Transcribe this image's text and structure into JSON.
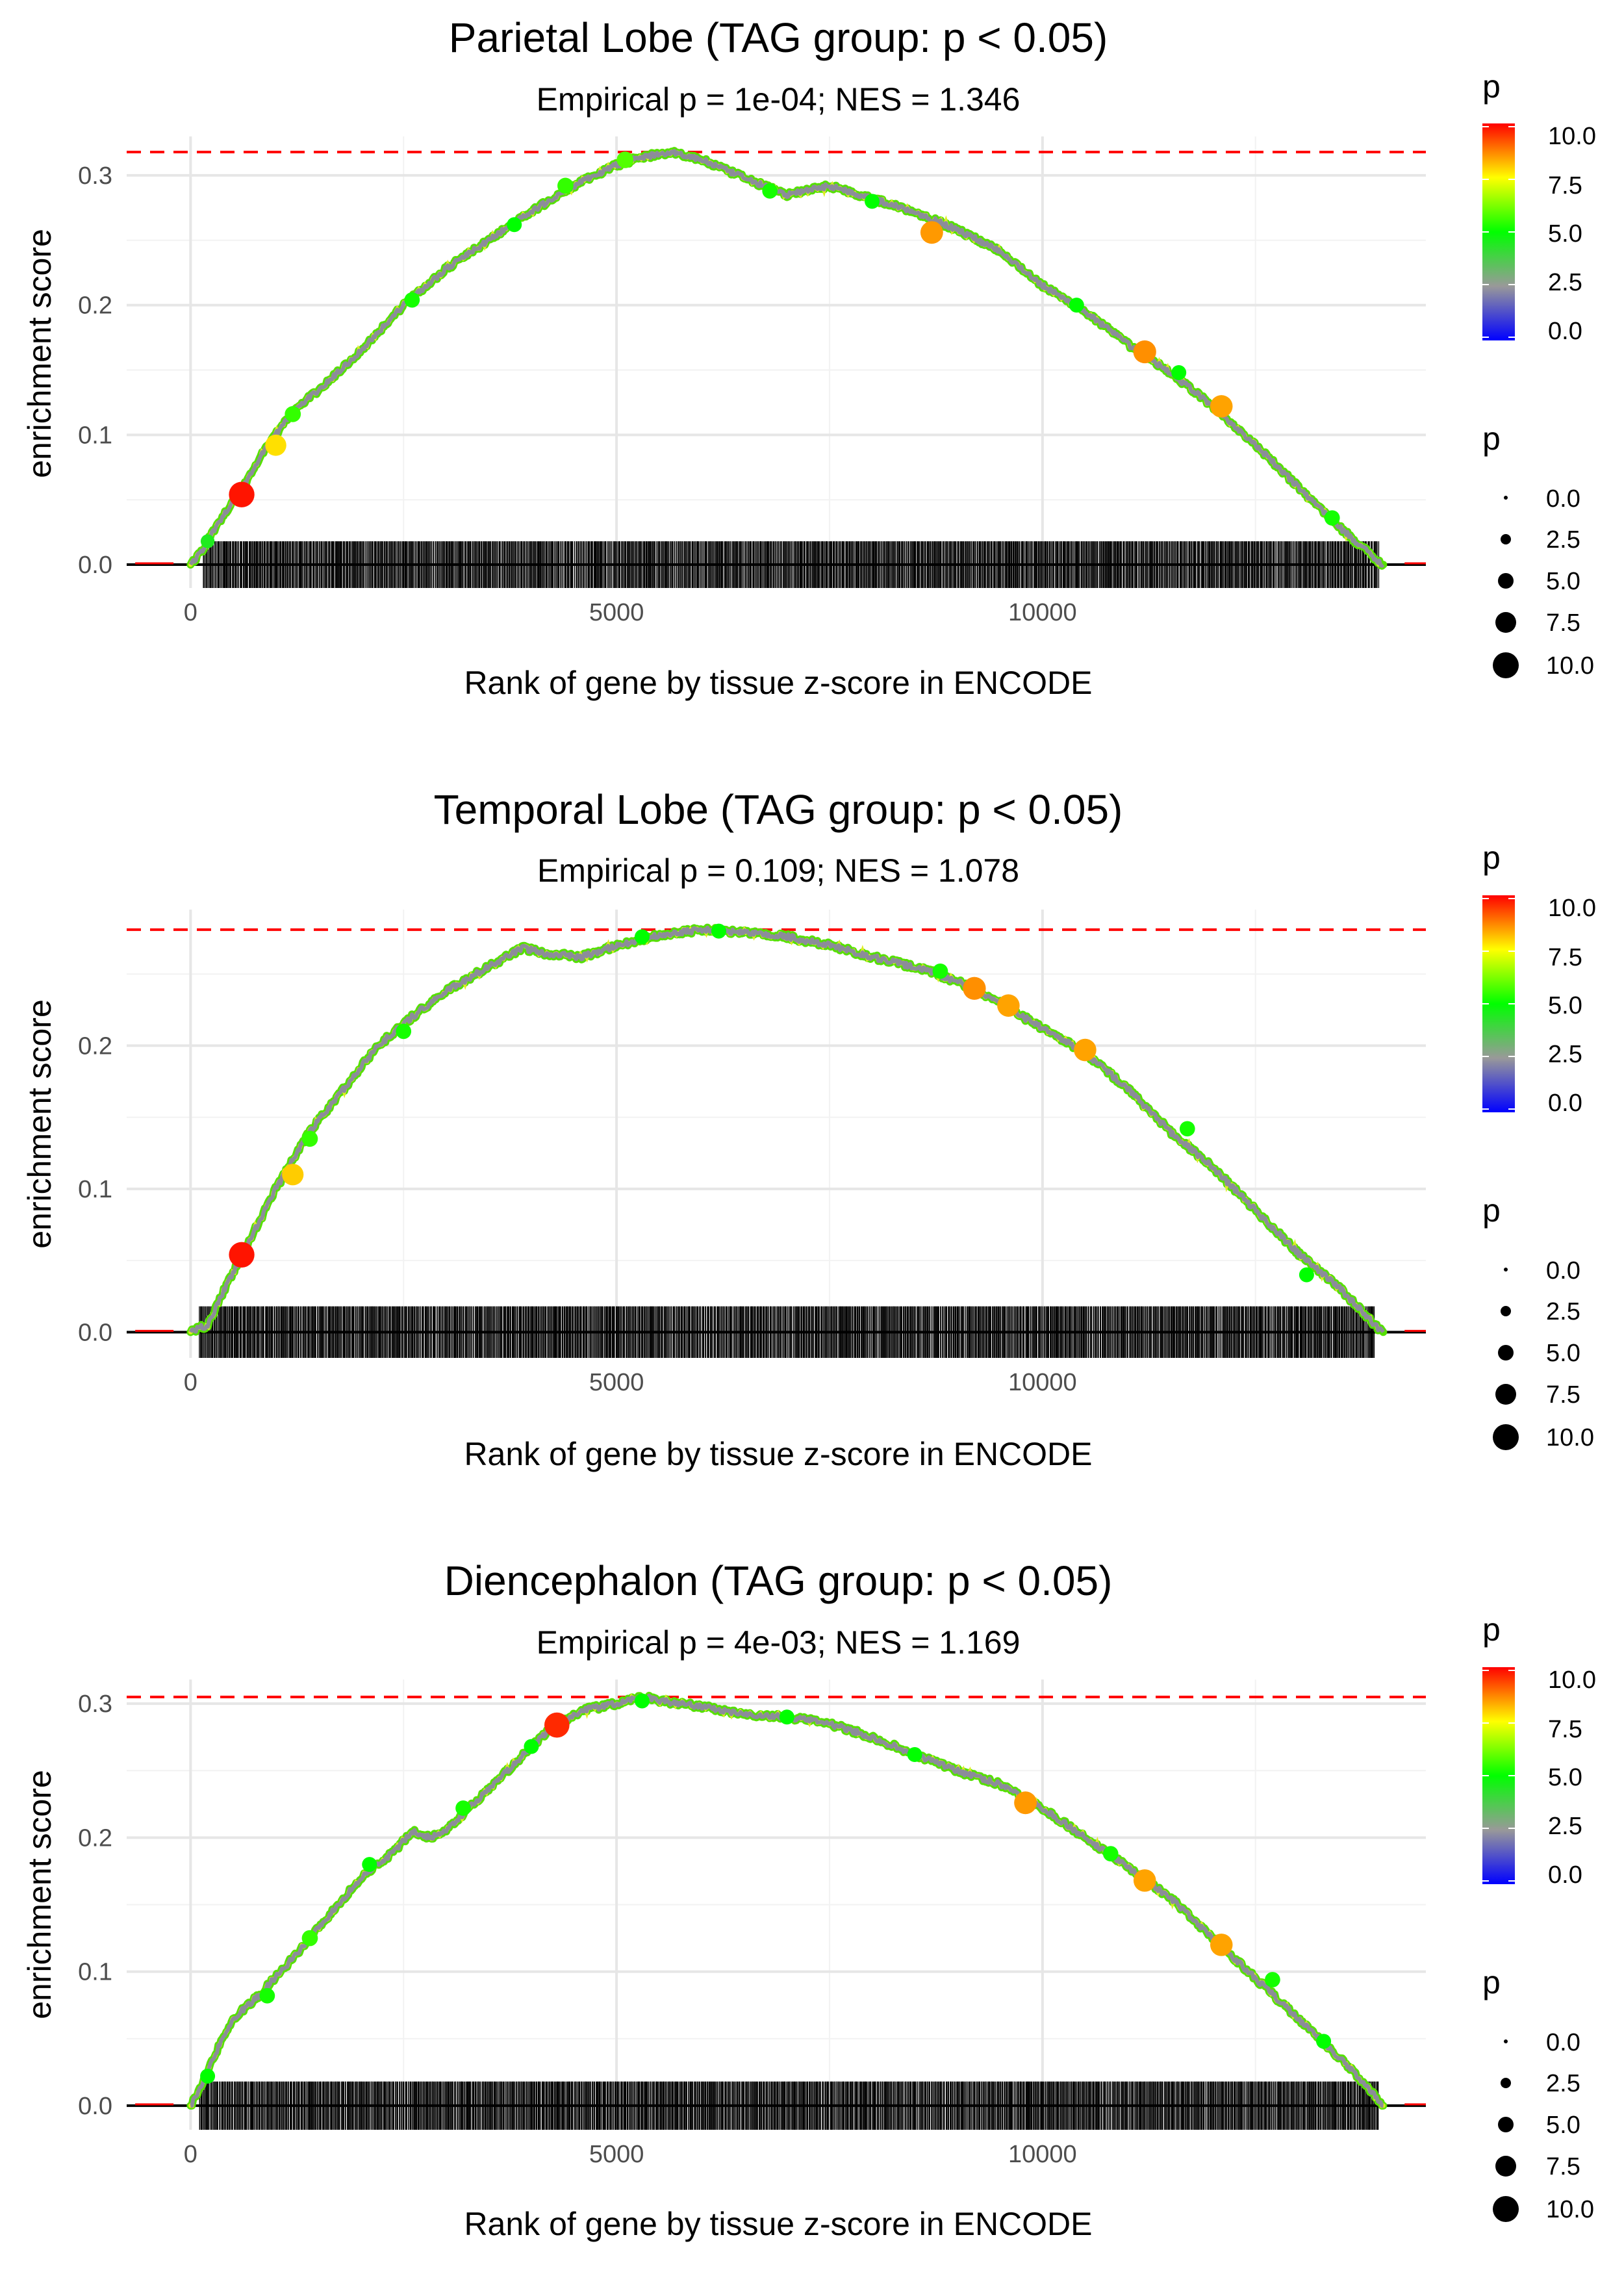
{
  "chart_data": [
    {
      "type": "line",
      "title": "Parietal Lobe (TAG group: p < 0.05)",
      "subtitle": "Empirical p = 1e-04; NES = 1.346",
      "xlabel": "Rank of gene by tissue z-score in ENCODE",
      "ylabel": "enrichment score",
      "xlim": [
        -750,
        14500
      ],
      "ylim": [
        -0.018,
        0.33
      ],
      "x_ticks": [
        0,
        5000,
        10000
      ],
      "x_tick_labels": [
        "0",
        "5000",
        "10000"
      ],
      "y_ticks": [
        0.0,
        0.1,
        0.2,
        0.3
      ],
      "y_tick_labels": [
        "0.0",
        "0.1",
        "0.2",
        "0.3"
      ],
      "grid": true,
      "max_es": 0.318,
      "curve": {
        "x": [
          0,
          150,
          300,
          600,
          900,
          1200,
          1600,
          2000,
          2500,
          3000,
          3500,
          4000,
          4500,
          5000,
          5300,
          5650,
          6000,
          6500,
          7000,
          7500,
          8000,
          8500,
          9000,
          9500,
          10000,
          10500,
          11000,
          11500,
          12000,
          12500,
          13000,
          13500,
          13900,
          14000
        ],
        "y": [
          0,
          0.012,
          0.03,
          0.058,
          0.092,
          0.118,
          0.14,
          0.165,
          0.2,
          0.228,
          0.25,
          0.272,
          0.292,
          0.308,
          0.314,
          0.318,
          0.312,
          0.298,
          0.285,
          0.292,
          0.282,
          0.272,
          0.258,
          0.242,
          0.215,
          0.195,
          0.17,
          0.148,
          0.122,
          0.092,
          0.06,
          0.028,
          0.005,
          0
        ]
      },
      "rug": {
        "x_start": 150,
        "x_end": 13950,
        "count": 1200,
        "ymin": -0.018,
        "ymax": 0.018
      },
      "points": {
        "x": [
          200,
          600,
          1000,
          1200,
          2600,
          3800,
          4400,
          5100,
          6800,
          8000,
          8700,
          10400,
          11200,
          11600,
          12100,
          13400
        ],
        "y": [
          0.018,
          0.054,
          0.092,
          0.116,
          0.204,
          0.262,
          0.292,
          0.312,
          0.288,
          0.28,
          0.256,
          0.2,
          0.164,
          0.148,
          0.122,
          0.036
        ],
        "p": [
          4.5,
          9.8,
          7.8,
          5.5,
          5.2,
          5.0,
          5.5,
          5.8,
          5.2,
          5.0,
          8.5,
          5.0,
          8.6,
          5.0,
          8.4,
          5.2
        ]
      },
      "legend_color": {
        "title": "p",
        "ticks": [
          "10.0",
          "7.5",
          "5.0",
          "2.5",
          "0.0"
        ],
        "values": [
          10,
          7.5,
          5,
          2.5,
          0
        ]
      },
      "legend_size": {
        "title": "p",
        "labels": [
          "0.0",
          "2.5",
          "5.0",
          "7.5",
          "10.0"
        ],
        "values": [
          0,
          2.5,
          5,
          7.5,
          10
        ]
      }
    },
    {
      "type": "line",
      "title": "Temporal Lobe (TAG group: p < 0.05)",
      "subtitle": "Empirical p = 0.109; NES = 1.078",
      "xlabel": "Rank of gene by tissue z-score in ENCODE",
      "ylabel": "enrichment score",
      "xlim": [
        -750,
        14500
      ],
      "ylim": [
        -0.018,
        0.295
      ],
      "x_ticks": [
        0,
        5000,
        10000
      ],
      "x_tick_labels": [
        "0",
        "5000",
        "10000"
      ],
      "y_ticks": [
        0.0,
        0.1,
        0.2
      ],
      "y_tick_labels": [
        "0.0",
        "0.1",
        "0.2"
      ],
      "grid": true,
      "max_es": 0.281,
      "curve": {
        "x": [
          0,
          200,
          400,
          700,
          1000,
          1400,
          1800,
          2200,
          2600,
          3000,
          3500,
          3900,
          4200,
          4600,
          5000,
          5500,
          6000,
          6500,
          7000,
          7500,
          8000,
          8500,
          9000,
          9500,
          10000,
          10500,
          11000,
          11500,
          12000,
          12500,
          13000,
          13500,
          13900,
          14000
        ],
        "y": [
          0,
          0.005,
          0.03,
          0.065,
          0.1,
          0.14,
          0.17,
          0.2,
          0.22,
          0.238,
          0.255,
          0.268,
          0.264,
          0.262,
          0.27,
          0.277,
          0.281,
          0.279,
          0.276,
          0.27,
          0.262,
          0.255,
          0.245,
          0.23,
          0.212,
          0.195,
          0.17,
          0.14,
          0.115,
          0.085,
          0.055,
          0.03,
          0.005,
          0
        ]
      },
      "rug": {
        "x_start": 100,
        "x_end": 13900,
        "count": 1200,
        "ymin": -0.018,
        "ymax": 0.018
      },
      "points": {
        "x": [
          600,
          1200,
          1400,
          2500,
          5300,
          6200,
          8800,
          9200,
          9600,
          10500,
          11700,
          13100
        ],
        "y": [
          0.054,
          0.11,
          0.135,
          0.21,
          0.276,
          0.28,
          0.252,
          0.24,
          0.228,
          0.197,
          0.142,
          0.04
        ],
        "p": [
          9.8,
          8.0,
          5.5,
          5.2,
          5.0,
          5.0,
          5.2,
          8.6,
          8.4,
          8.4,
          5.2,
          5.0
        ]
      },
      "legend_color": {
        "title": "p",
        "ticks": [
          "10.0",
          "7.5",
          "5.0",
          "2.5",
          "0.0"
        ],
        "values": [
          10,
          7.5,
          5,
          2.5,
          0
        ]
      },
      "legend_size": {
        "title": "p",
        "labels": [
          "0.0",
          "2.5",
          "5.0",
          "7.5",
          "10.0"
        ],
        "values": [
          0,
          2.5,
          5,
          7.5,
          10
        ]
      }
    },
    {
      "type": "line",
      "title": "Diencephalon (TAG group: p < 0.05)",
      "subtitle": "Empirical p = 4e-03; NES = 1.169",
      "xlabel": "Rank of gene by tissue z-score in ENCODE",
      "ylabel": "enrichment score",
      "xlim": [
        -750,
        14500
      ],
      "ylim": [
        -0.018,
        0.318
      ],
      "x_ticks": [
        0,
        5000,
        10000
      ],
      "x_tick_labels": [
        "0",
        "5000",
        "10000"
      ],
      "y_ticks": [
        0.0,
        0.1,
        0.2,
        0.3
      ],
      "y_tick_labels": [
        "0.0",
        "0.1",
        "0.2",
        "0.3"
      ],
      "grid": true,
      "max_es": 0.305,
      "curve": {
        "x": [
          0,
          150,
          300,
          500,
          800,
          1200,
          1600,
          2000,
          2400,
          2600,
          2800,
          3000,
          3400,
          3800,
          4200,
          4600,
          5000,
          5300,
          5700,
          6000,
          6500,
          7000,
          7500,
          8000,
          8500,
          9000,
          9500,
          10000,
          10500,
          11000,
          11500,
          12000,
          12500,
          13000,
          13500,
          13900,
          14000
        ],
        "y": [
          0,
          0.018,
          0.04,
          0.065,
          0.082,
          0.11,
          0.14,
          0.17,
          0.19,
          0.205,
          0.2,
          0.205,
          0.23,
          0.255,
          0.28,
          0.295,
          0.3,
          0.305,
          0.3,
          0.298,
          0.292,
          0.29,
          0.285,
          0.275,
          0.262,
          0.25,
          0.24,
          0.222,
          0.2,
          0.178,
          0.155,
          0.125,
          0.095,
          0.065,
          0.035,
          0.008,
          0
        ]
      },
      "rug": {
        "x_start": 100,
        "x_end": 13950,
        "count": 1200,
        "ymin": -0.018,
        "ymax": 0.018
      },
      "points": {
        "x": [
          200,
          900,
          1400,
          2100,
          3200,
          4000,
          4300,
          5300,
          7000,
          8500,
          9800,
          10800,
          11200,
          12100,
          12700,
          13300
        ],
        "y": [
          0.022,
          0.082,
          0.125,
          0.18,
          0.222,
          0.268,
          0.284,
          0.302,
          0.29,
          0.262,
          0.226,
          0.188,
          0.168,
          0.12,
          0.094,
          0.048
        ],
        "p": [
          5.0,
          5.2,
          5.5,
          5.0,
          5.2,
          5.0,
          9.6,
          5.0,
          5.0,
          5.0,
          8.5,
          5.2,
          8.4,
          8.4,
          5.2,
          5.0
        ]
      },
      "legend_color": {
        "title": "p",
        "ticks": [
          "10.0",
          "7.5",
          "5.0",
          "2.5",
          "0.0"
        ],
        "values": [
          10,
          7.5,
          5,
          2.5,
          0
        ]
      },
      "legend_size": {
        "title": "p",
        "labels": [
          "0.0",
          "2.5",
          "5.0",
          "7.5",
          "10.0"
        ],
        "values": [
          0,
          2.5,
          5,
          7.5,
          10
        ]
      }
    }
  ]
}
